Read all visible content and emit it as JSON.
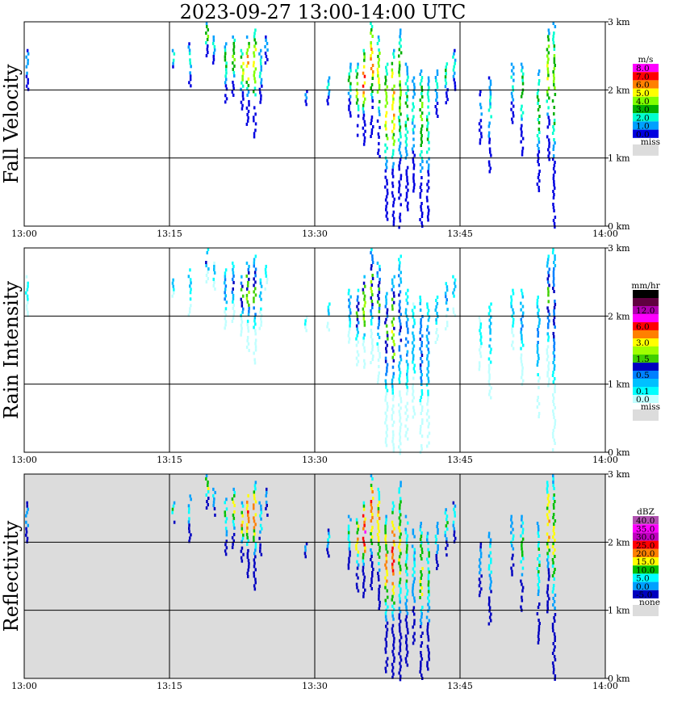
{
  "chart_data": {
    "type": "heatmap",
    "title": "2023-09-27  13:00-14:00 UTC",
    "x_ticks": [
      "13:00",
      "13:15",
      "13:30",
      "13:45",
      "14:00"
    ],
    "y_ticks": [
      "0 km",
      "1 km",
      "2 km",
      "3 km"
    ],
    "xlim": [
      "13:00",
      "14:00"
    ],
    "ylim_km": [
      0,
      3.0
    ],
    "grid": true,
    "panels": [
      {
        "name": "fall-velocity",
        "label": "Fall Velocity",
        "unit": "m/s",
        "background": "#ffffff",
        "legend": [
          {
            "label": "8.0",
            "color": "#ff00ff"
          },
          {
            "label": "7.0",
            "color": "#ff0000"
          },
          {
            "label": "6.0",
            "color": "#ff8000"
          },
          {
            "label": "5.0",
            "color": "#ffff00"
          },
          {
            "label": "4.0",
            "color": "#80ff00"
          },
          {
            "label": "3.0",
            "color": "#00b000"
          },
          {
            "label": "2.0",
            "color": "#00ffd0"
          },
          {
            "label": "1.0",
            "color": "#00a0ff"
          },
          {
            "label": "0.0",
            "color": "#0000e0"
          }
        ],
        "missing_label": "miss"
      },
      {
        "name": "rain-intensity",
        "label": "Rain Intensity",
        "unit": "mm/hr",
        "background": "#ffffff",
        "legend": [
          {
            "label": "48.0",
            "color": "#000000"
          },
          {
            "label": "",
            "color": "#600040"
          },
          {
            "label": "12.0",
            "color": "#b000b0"
          },
          {
            "label": "",
            "color": "#ff00ff"
          },
          {
            "label": "6.0",
            "color": "#ff0000"
          },
          {
            "label": "",
            "color": "#ff8000"
          },
          {
            "label": "3.0",
            "color": "#ffff00"
          },
          {
            "label": "",
            "color": "#a0ff00"
          },
          {
            "label": "1.5",
            "color": "#40d000"
          },
          {
            "label": "",
            "color": "#0000c0"
          },
          {
            "label": "0.5",
            "color": "#0080ff"
          },
          {
            "label": "",
            "color": "#00c0ff"
          },
          {
            "label": "0.1",
            "color": "#00ffff"
          },
          {
            "label": "0.0",
            "color": "#c0ffff"
          }
        ],
        "missing_label": "miss"
      },
      {
        "name": "reflectivity",
        "label": "Reflectivity",
        "unit": "dBZ",
        "background": "#dcdcdc",
        "legend": [
          {
            "label": "40.0",
            "color": "#b050b0"
          },
          {
            "label": "35.0",
            "color": "#ff00ff"
          },
          {
            "label": "30.0",
            "color": "#c000c0"
          },
          {
            "label": "25.0",
            "color": "#ff0000"
          },
          {
            "label": "20.0",
            "color": "#ff8000"
          },
          {
            "label": "15.0",
            "color": "#ffff00"
          },
          {
            "label": "10.0",
            "color": "#00c000"
          },
          {
            "label": "5.0",
            "color": "#00ffff"
          },
          {
            "label": "0.0",
            "color": "#00a0ff"
          },
          {
            "label": "-5.0",
            "color": "#0000c0"
          }
        ],
        "missing_label": "none"
      }
    ],
    "echo_columns": [
      {
        "minute": 0.2,
        "bottom_km": 2.0,
        "top_km": 2.6,
        "max_level": 1
      },
      {
        "minute": 15.3,
        "bottom_km": 2.3,
        "top_km": 2.6,
        "max_level": 3
      },
      {
        "minute": 17.0,
        "bottom_km": 2.0,
        "top_km": 2.7,
        "max_level": 2
      },
      {
        "minute": 18.8,
        "bottom_km": 2.5,
        "top_km": 3.0,
        "max_level": 4
      },
      {
        "minute": 19.5,
        "bottom_km": 2.4,
        "top_km": 2.8,
        "max_level": 2
      },
      {
        "minute": 20.7,
        "bottom_km": 1.8,
        "top_km": 2.7,
        "max_level": 3
      },
      {
        "minute": 21.5,
        "bottom_km": 1.9,
        "top_km": 2.8,
        "max_level": 4
      },
      {
        "minute": 22.4,
        "bottom_km": 1.7,
        "top_km": 2.6,
        "max_level": 5
      },
      {
        "minute": 23.0,
        "bottom_km": 1.5,
        "top_km": 2.8,
        "max_level": 6
      },
      {
        "minute": 23.7,
        "bottom_km": 1.3,
        "top_km": 2.9,
        "max_level": 5
      },
      {
        "minute": 24.3,
        "bottom_km": 1.8,
        "top_km": 2.6,
        "max_level": 2
      },
      {
        "minute": 24.9,
        "bottom_km": 2.4,
        "top_km": 2.8,
        "max_level": 1
      },
      {
        "minute": 29.0,
        "bottom_km": 1.8,
        "top_km": 2.0,
        "max_level": 1
      },
      {
        "minute": 31.3,
        "bottom_km": 1.8,
        "top_km": 2.2,
        "max_level": 2
      },
      {
        "minute": 33.5,
        "bottom_km": 1.6,
        "top_km": 2.4,
        "max_level": 3
      },
      {
        "minute": 34.3,
        "bottom_km": 1.3,
        "top_km": 2.4,
        "max_level": 5
      },
      {
        "minute": 35.0,
        "bottom_km": 1.2,
        "top_km": 2.6,
        "max_level": 7
      },
      {
        "minute": 35.8,
        "bottom_km": 1.3,
        "top_km": 3.0,
        "max_level": 6
      },
      {
        "minute": 36.5,
        "bottom_km": 1.0,
        "top_km": 2.8,
        "max_level": 5
      },
      {
        "minute": 37.3,
        "bottom_km": 0.1,
        "top_km": 2.4,
        "max_level": 5
      },
      {
        "minute": 38.0,
        "bottom_km": 0.0,
        "top_km": 2.6,
        "max_level": 6
      },
      {
        "minute": 38.7,
        "bottom_km": 0.0,
        "top_km": 2.9,
        "max_level": 4
      },
      {
        "minute": 39.4,
        "bottom_km": 0.2,
        "top_km": 2.4,
        "max_level": 3
      },
      {
        "minute": 40.1,
        "bottom_km": 0.5,
        "top_km": 2.2,
        "max_level": 2
      },
      {
        "minute": 40.9,
        "bottom_km": 0.0,
        "top_km": 2.3,
        "max_level": 4
      },
      {
        "minute": 41.6,
        "bottom_km": 0.1,
        "top_km": 2.2,
        "max_level": 3
      },
      {
        "minute": 42.5,
        "bottom_km": 1.6,
        "top_km": 2.3,
        "max_level": 2
      },
      {
        "minute": 43.5,
        "bottom_km": 1.8,
        "top_km": 2.5,
        "max_level": 3
      },
      {
        "minute": 44.3,
        "bottom_km": 2.0,
        "top_km": 2.6,
        "max_level": 2
      },
      {
        "minute": 47.0,
        "bottom_km": 1.2,
        "top_km": 2.0,
        "max_level": 1
      },
      {
        "minute": 48.0,
        "bottom_km": 0.8,
        "top_km": 2.2,
        "max_level": 2
      },
      {
        "minute": 50.3,
        "bottom_km": 1.5,
        "top_km": 2.4,
        "max_level": 2
      },
      {
        "minute": 51.3,
        "bottom_km": 1.0,
        "top_km": 2.4,
        "max_level": 3
      },
      {
        "minute": 53.0,
        "bottom_km": 0.5,
        "top_km": 2.3,
        "max_level": 3
      },
      {
        "minute": 54.0,
        "bottom_km": 1.0,
        "top_km": 2.9,
        "max_level": 5
      },
      {
        "minute": 54.6,
        "bottom_km": 0.0,
        "top_km": 3.0,
        "max_level": 4
      }
    ]
  }
}
